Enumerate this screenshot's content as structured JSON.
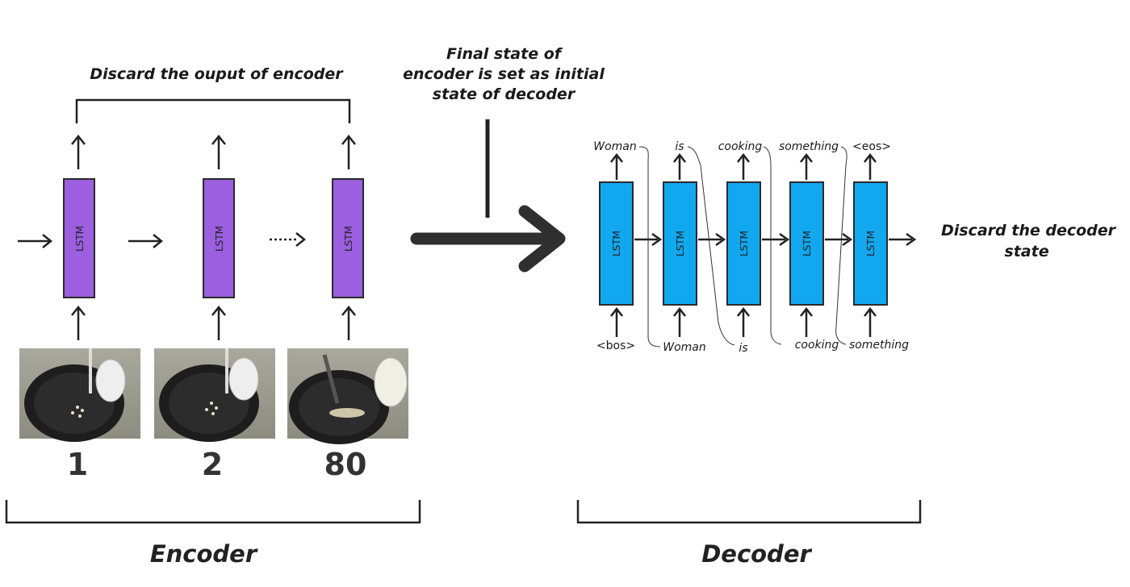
{
  "annotations": {
    "discard_encoder_output": "Discard the ouput of encoder",
    "final_state_line1": "Final state of",
    "final_state_line2": "encoder is set as initial",
    "final_state_line3": "state of decoder",
    "discard_decoder_line1": "Discard the decoder",
    "discard_decoder_line2": "state"
  },
  "encoder": {
    "label": "Encoder",
    "cells": [
      {
        "label": "LSTM",
        "frame": "1"
      },
      {
        "label": "LSTM",
        "frame": "2"
      },
      {
        "label": "LSTM",
        "frame": "80"
      }
    ],
    "cell_color": "#9b5fe0"
  },
  "decoder": {
    "label": "Decoder",
    "cell_color": "#12a8f0",
    "cells": [
      {
        "label": "LSTM",
        "output": "Woman",
        "input": "<bos>"
      },
      {
        "label": "LSTM",
        "output": "is",
        "input": "Woman"
      },
      {
        "label": "LSTM",
        "output": "cooking",
        "input": "is"
      },
      {
        "label": "LSTM",
        "output": "something",
        "input": "cooking"
      },
      {
        "label": "LSTM",
        "output": "<eos>",
        "input": "something"
      }
    ]
  }
}
